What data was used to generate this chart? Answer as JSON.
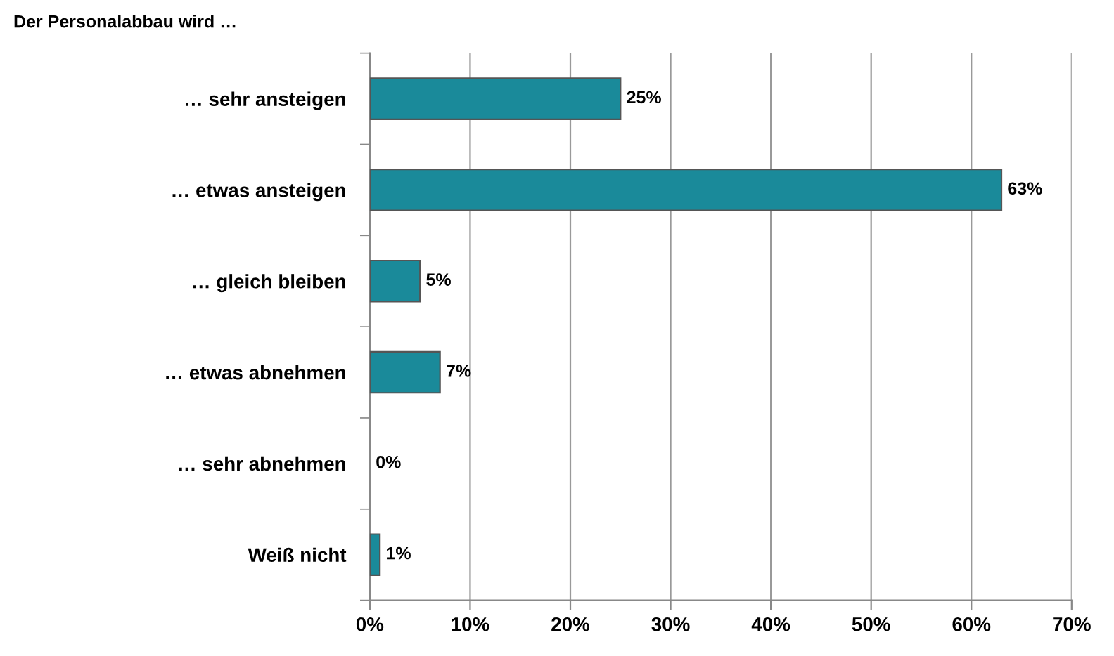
{
  "chart_data": {
    "type": "bar",
    "orientation": "horizontal",
    "title": "Der Personalabbau wird …",
    "categories": [
      "… sehr ansteigen",
      "… etwas ansteigen",
      "… gleich bleiben",
      "… etwas abnehmen",
      "… sehr abnehmen",
      "Weiß nicht"
    ],
    "values": [
      25,
      63,
      5,
      7,
      0,
      1
    ],
    "value_labels": [
      "25%",
      "63%",
      "5%",
      "7%",
      "0%",
      "1%"
    ],
    "color": "#1a8a9a",
    "xlim": [
      0,
      70
    ],
    "xticks": [
      {
        "value": 0,
        "label": "0%"
      },
      {
        "value": 10,
        "label": "10%"
      },
      {
        "value": 20,
        "label": "20%"
      },
      {
        "value": 30,
        "label": "30%"
      },
      {
        "value": 40,
        "label": "40%"
      },
      {
        "value": 50,
        "label": "50%"
      },
      {
        "value": 60,
        "label": "60%"
      },
      {
        "value": 70,
        "label": "70%"
      }
    ],
    "grid": "x"
  }
}
